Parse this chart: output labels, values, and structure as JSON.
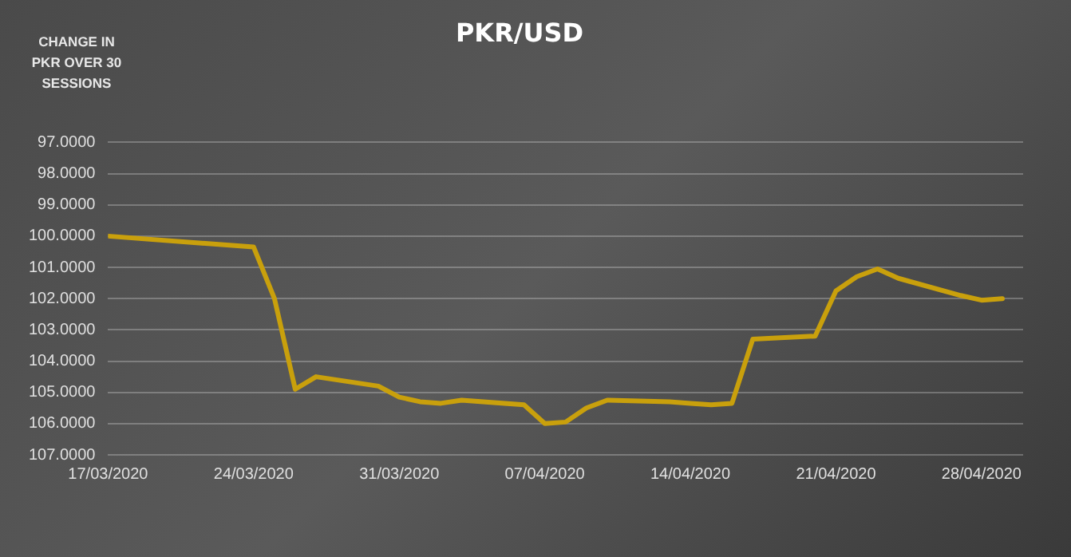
{
  "chart_data": {
    "type": "line",
    "title": "PKR/USD",
    "ylabel": "CHANGE IN PKR OVER 30 SESSIONS",
    "x": [
      "2020-03-17",
      "2020-03-24",
      "2020-03-25",
      "2020-03-26",
      "2020-03-27",
      "2020-03-30",
      "2020-03-31",
      "2020-04-01",
      "2020-04-02",
      "2020-04-03",
      "2020-04-06",
      "2020-04-07",
      "2020-04-08",
      "2020-04-09",
      "2020-04-10",
      "2020-04-13",
      "2020-04-14",
      "2020-04-15",
      "2020-04-16",
      "2020-04-17",
      "2020-04-20",
      "2020-04-21",
      "2020-04-22",
      "2020-04-23",
      "2020-04-24",
      "2020-04-27",
      "2020-04-28",
      "2020-04-29"
    ],
    "series": [
      {
        "color": "#c9a00c",
        "values": [
          100.0,
          100.35,
          102.0,
          104.9,
          104.5,
          104.8,
          105.15,
          105.3,
          105.35,
          105.25,
          105.4,
          106.0,
          105.95,
          105.5,
          105.25,
          105.3,
          105.35,
          105.4,
          105.35,
          103.3,
          103.2,
          101.75,
          101.3,
          101.05,
          101.35,
          101.9,
          102.05,
          102.0
        ]
      }
    ],
    "xlim": [
      "2020-03-17",
      "2020-04-30"
    ],
    "xticks": [
      {
        "value": "2020-03-17",
        "label": "17/03/2020"
      },
      {
        "value": "2020-03-24",
        "label": "24/03/2020"
      },
      {
        "value": "2020-03-31",
        "label": "31/03/2020"
      },
      {
        "value": "2020-04-07",
        "label": "07/04/2020"
      },
      {
        "value": "2020-04-14",
        "label": "14/04/2020"
      },
      {
        "value": "2020-04-21",
        "label": "21/04/2020"
      },
      {
        "value": "2020-04-28",
        "label": "28/04/2020"
      }
    ],
    "ylim": [
      107,
      97
    ],
    "yticks": [
      {
        "value": 97,
        "label": "97.0000"
      },
      {
        "value": 98,
        "label": "98.0000"
      },
      {
        "value": 99,
        "label": "99.0000"
      },
      {
        "value": 100,
        "label": "100.0000"
      },
      {
        "value": 101,
        "label": "101.0000"
      },
      {
        "value": 102,
        "label": "102.0000"
      },
      {
        "value": 103,
        "label": "103.0000"
      },
      {
        "value": 104,
        "label": "104.0000"
      },
      {
        "value": 105,
        "label": "105.0000"
      },
      {
        "value": 106,
        "label": "106.0000"
      },
      {
        "value": 107,
        "label": "107.0000"
      }
    ],
    "grid": "y",
    "legend": false,
    "marker": "none",
    "line_style": "solid"
  }
}
